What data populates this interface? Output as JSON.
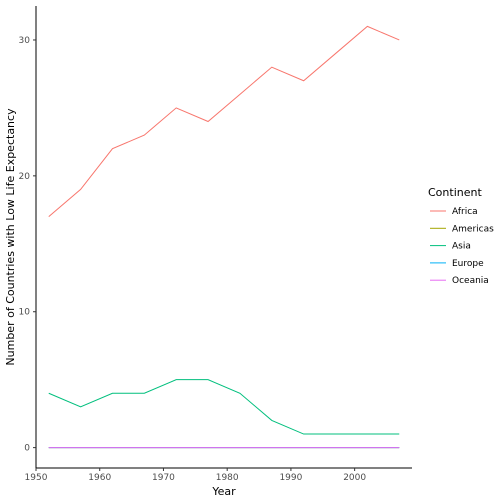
{
  "chart_data": {
    "type": "line",
    "xlabel": "Year",
    "ylabel": "Number of Countries with Low Life Expectancy",
    "xlim": [
      1950,
      2009
    ],
    "ylim": [
      -1.5,
      32.5
    ],
    "x_ticks": [
      1950,
      1960,
      1970,
      1980,
      1990,
      2000
    ],
    "y_ticks": [
      0,
      10,
      20,
      30
    ],
    "grid": false,
    "legend_placement": "right",
    "legend": {
      "title": "Continent",
      "entries": [
        "Africa",
        "Americas",
        "Asia",
        "Europe",
        "Oceania"
      ]
    },
    "x": [
      1952,
      1957,
      1962,
      1967,
      1972,
      1977,
      1982,
      1987,
      1992,
      1997,
      2002,
      2007
    ],
    "series": [
      {
        "name": "Africa",
        "color": "#F8766D",
        "values": [
          17,
          19,
          22,
          23,
          25,
          24,
          26,
          28,
          27,
          29,
          31,
          30
        ]
      },
      {
        "name": "Americas",
        "color": "#A3A500",
        "values": [
          0,
          0,
          0,
          0,
          0,
          0,
          0,
          0,
          0,
          0,
          0,
          0
        ]
      },
      {
        "name": "Asia",
        "color": "#00BF7D",
        "values": [
          4,
          3,
          4,
          4,
          5,
          5,
          4,
          2,
          1,
          1,
          1,
          1
        ]
      },
      {
        "name": "Europe",
        "color": "#00B0F6",
        "values": [
          0,
          0,
          0,
          0,
          0,
          0,
          0,
          0,
          0,
          0,
          0,
          0
        ]
      },
      {
        "name": "Oceania",
        "color": "#E76BF3",
        "values": [
          0,
          0,
          0,
          0,
          0,
          0,
          0,
          0,
          0,
          0,
          0,
          0
        ]
      }
    ]
  }
}
